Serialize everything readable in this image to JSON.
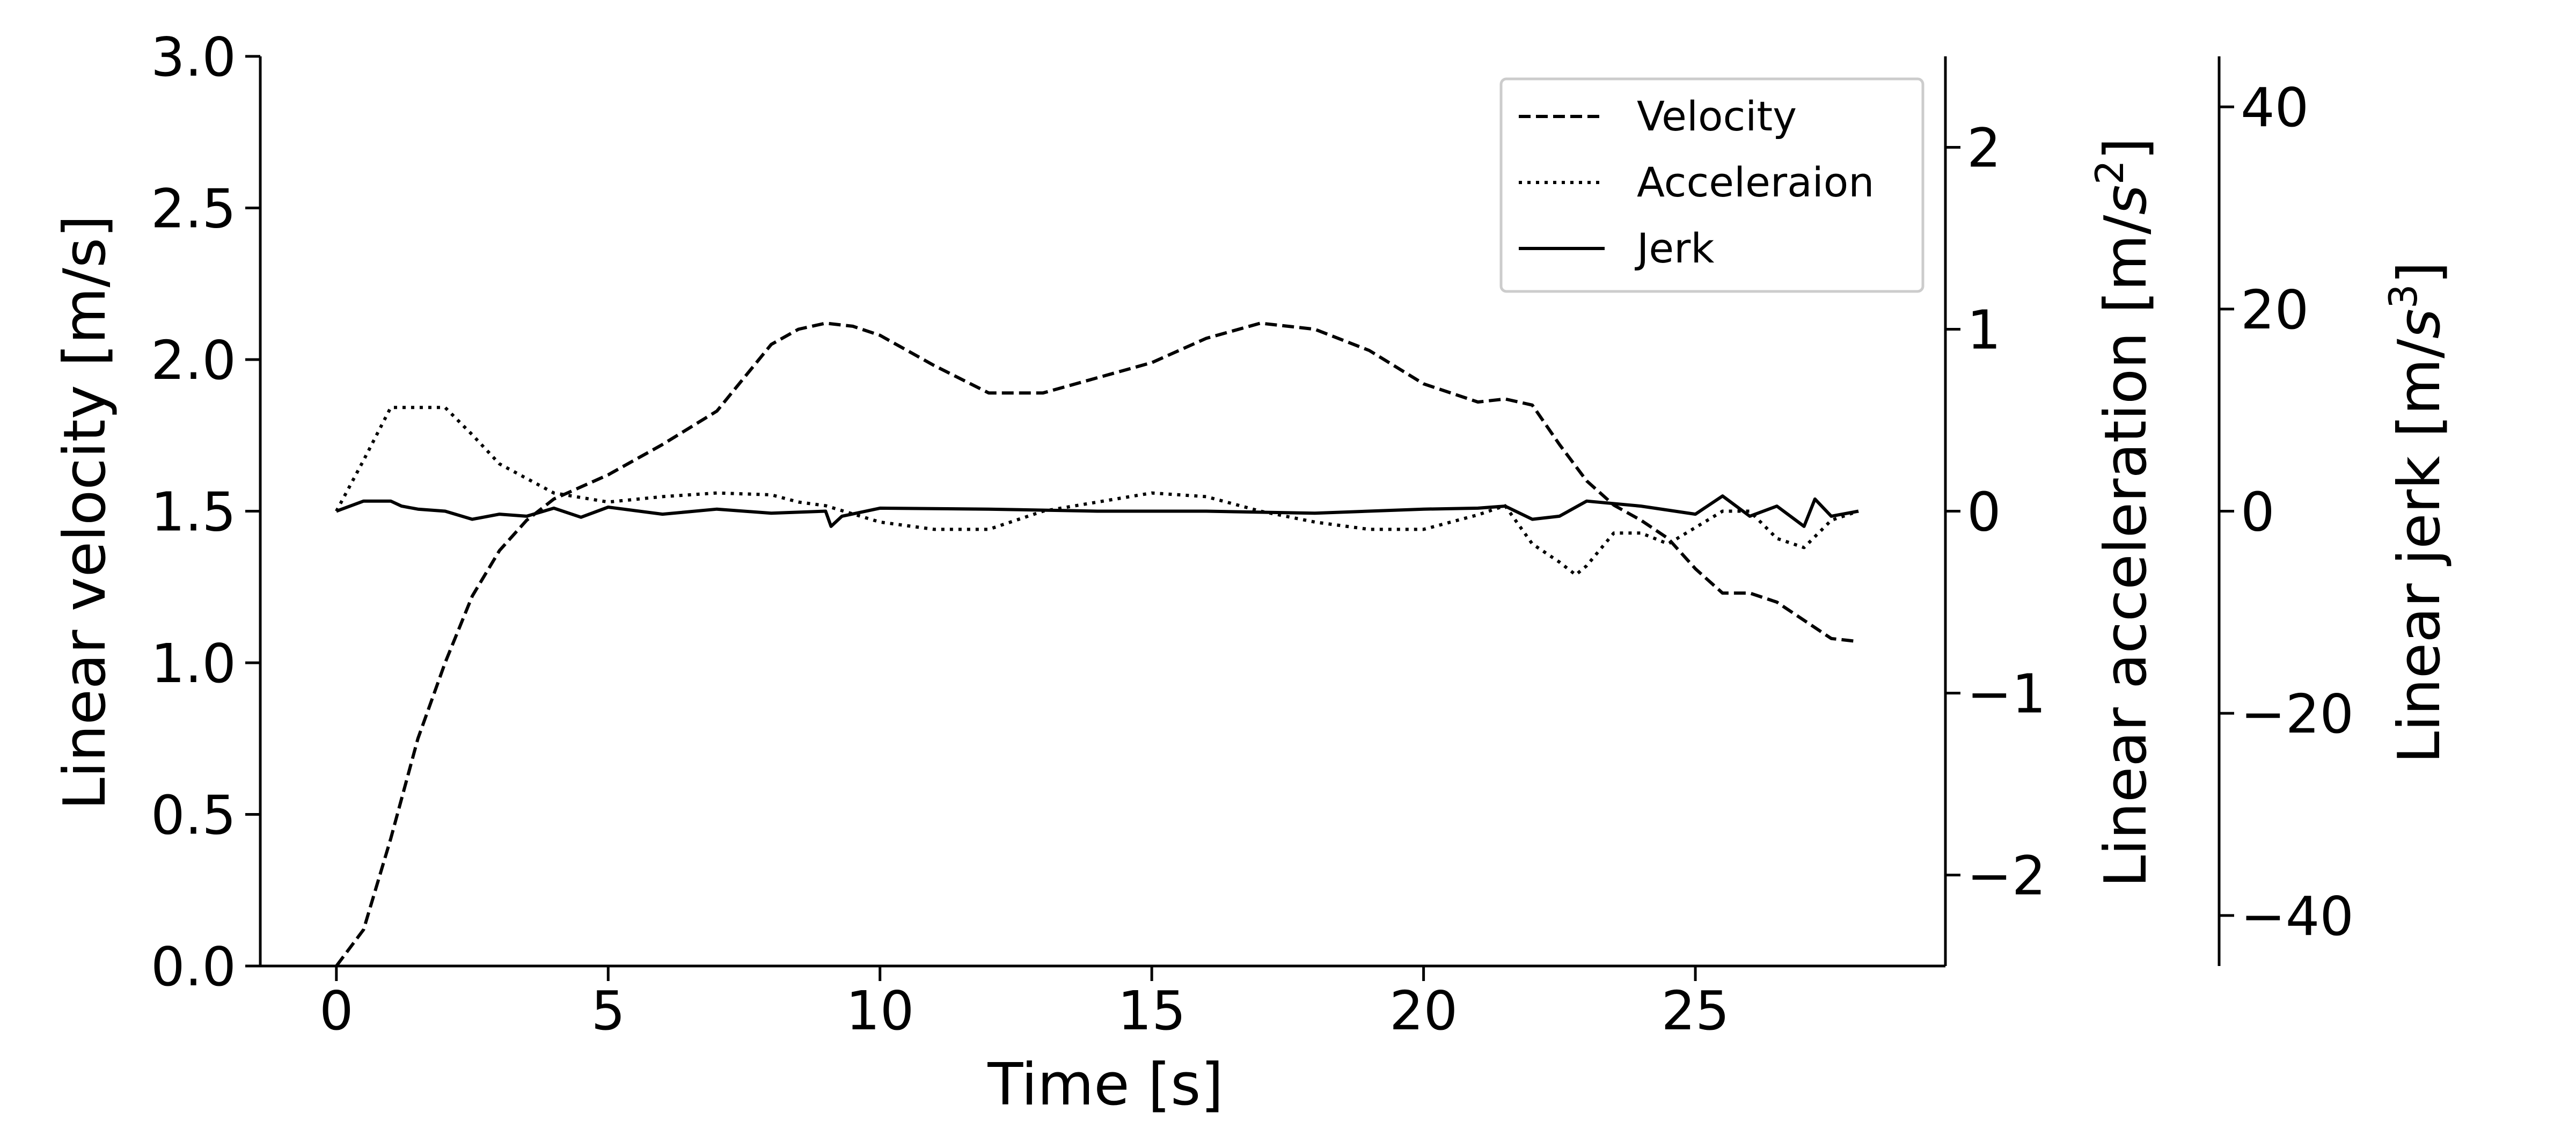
{
  "chart_data": {
    "type": "line",
    "xlabel": "Time [s]",
    "ylabel_left": "Linear velocity [m/s]",
    "ylabel_right1_main": "Linear acceleration [m/",
    "ylabel_right1_italic": "s",
    "ylabel_right1_sup": "2",
    "ylabel_right1_close": "]",
    "ylabel_right2_main": "Linear jerk [m/",
    "ylabel_right2_italic": "s",
    "ylabel_right2_sup": "3",
    "ylabel_right2_close": "]",
    "xlim": [
      -1.4,
      29.6
    ],
    "ylim_velocity": [
      0,
      3.0
    ],
    "ylim_acceleration": [
      -2.5,
      2.5
    ],
    "ylim_jerk": [
      -45,
      45
    ],
    "x_ticks": [
      "0",
      "5",
      "10",
      "15",
      "20",
      "25"
    ],
    "x_tick_values": [
      0,
      5,
      10,
      15,
      20,
      25
    ],
    "velocity_ticks": [
      "0.0",
      "0.5",
      "1.0",
      "1.5",
      "2.0",
      "2.5",
      "3.0"
    ],
    "velocity_tick_values": [
      0,
      0.5,
      1.0,
      1.5,
      2.0,
      2.5,
      3.0
    ],
    "acceleration_ticks": [
      "−2",
      "−1",
      "0",
      "1",
      "2"
    ],
    "acceleration_tick_values": [
      -2,
      -1,
      0,
      1,
      2
    ],
    "jerk_ticks": [
      "−40",
      "−20",
      "0",
      "20",
      "40"
    ],
    "jerk_tick_values": [
      -40,
      -20,
      0,
      20,
      40
    ],
    "legend_position": "upper-right",
    "grid": false,
    "series": [
      {
        "name": "Velocity",
        "axis": "velocity",
        "style": "dashed",
        "x": [
          0,
          0.5,
          1,
          1.5,
          2,
          2.5,
          3,
          3.5,
          4,
          4.5,
          5,
          6,
          7,
          8,
          8.5,
          9,
          9.5,
          10,
          11,
          12,
          13,
          14,
          15,
          16,
          17,
          18,
          19,
          20,
          21,
          21.5,
          22,
          22.5,
          23,
          23.5,
          24,
          24.5,
          25,
          25.5,
          26,
          26.5,
          27,
          27.5,
          28
        ],
        "y": [
          0.0,
          0.12,
          0.42,
          0.75,
          1.0,
          1.22,
          1.37,
          1.47,
          1.54,
          1.58,
          1.62,
          1.72,
          1.83,
          2.05,
          2.1,
          2.12,
          2.11,
          2.08,
          1.98,
          1.89,
          1.89,
          1.94,
          1.99,
          2.07,
          2.12,
          2.1,
          2.03,
          1.92,
          1.86,
          1.87,
          1.85,
          1.72,
          1.6,
          1.52,
          1.47,
          1.41,
          1.31,
          1.23,
          1.23,
          1.2,
          1.14,
          1.08,
          1.07
        ]
      },
      {
        "name": "Acceleraion",
        "axis": "acceleration",
        "style": "dotted",
        "x": [
          0,
          0.5,
          1,
          1.5,
          2,
          2.5,
          3,
          3.5,
          4,
          5,
          6,
          7,
          8,
          8.5,
          9,
          10,
          11,
          12,
          13,
          14,
          15,
          16,
          17,
          18,
          19,
          20,
          21,
          21.5,
          22,
          22.5,
          22.8,
          23,
          23.5,
          24,
          24.5,
          25,
          25.5,
          26,
          26.5,
          27,
          27.5,
          28
        ],
        "y": [
          0.0,
          0.28,
          0.57,
          0.57,
          0.57,
          0.42,
          0.26,
          0.18,
          0.1,
          0.05,
          0.08,
          0.1,
          0.09,
          0.05,
          0.03,
          -0.06,
          -0.1,
          -0.1,
          0.0,
          0.05,
          0.1,
          0.08,
          0.0,
          -0.06,
          -0.1,
          -0.1,
          -0.02,
          0.03,
          -0.18,
          -0.28,
          -0.35,
          -0.3,
          -0.12,
          -0.12,
          -0.18,
          -0.09,
          0.0,
          0.0,
          -0.15,
          -0.2,
          -0.05,
          0.0
        ]
      },
      {
        "name": "Jerk",
        "axis": "jerk",
        "style": "solid",
        "x": [
          0,
          0.5,
          1,
          1.2,
          1.5,
          2,
          2.5,
          3,
          3.5,
          4,
          4.5,
          5,
          6,
          7,
          8,
          9,
          9.1,
          9.3,
          10,
          12,
          14,
          16,
          18,
          20,
          21,
          21.5,
          22,
          22.5,
          23,
          24,
          25,
          25.5,
          26,
          26.5,
          27,
          27.2,
          27.5,
          28
        ],
        "y": [
          0,
          1,
          1,
          0.5,
          0.2,
          0,
          -0.8,
          -0.3,
          -0.5,
          0.3,
          -0.6,
          0.4,
          -0.3,
          0.2,
          -0.2,
          0,
          -1.5,
          -0.5,
          0.3,
          0.2,
          0,
          0,
          -0.2,
          0.2,
          0.3,
          0.5,
          -0.8,
          -0.5,
          1.0,
          0.5,
          -0.3,
          1.5,
          -0.5,
          0.5,
          -1.5,
          1.2,
          -0.5,
          0
        ]
      }
    ]
  }
}
